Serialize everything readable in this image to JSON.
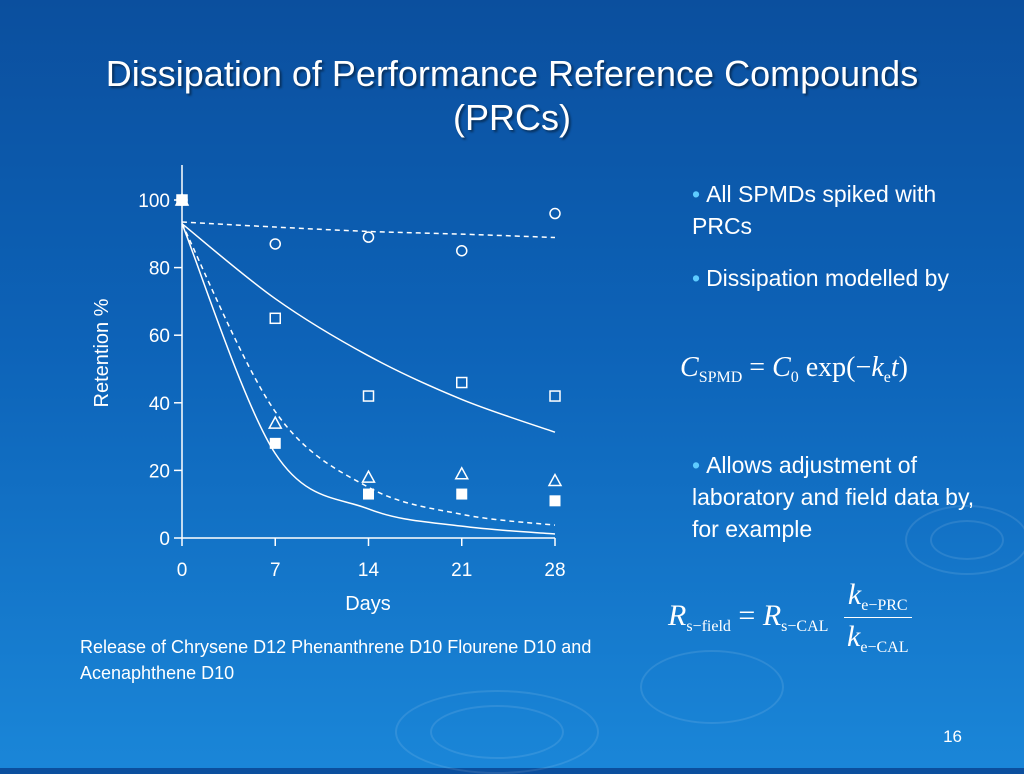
{
  "slide": {
    "title_line1": "Dissipation of Performance Reference Compounds",
    "title_line2": "(PRCs)",
    "page_number": "16",
    "caption": "Release of Chrysene D12 Phenanthrene D10 Flourene D10 and Acenaphthene D10",
    "bullets": [
      "All SPMDs spiked with PRCs",
      "Dissipation modelled by",
      "Allows adjustment of laboratory and field data by, for example"
    ]
  },
  "formula1": {
    "lhs": "C",
    "lhs_sub": "SPMD",
    "eq": "=",
    "c0": "C",
    "c0_sub": "0",
    "exp": "exp(",
    "minus": "−",
    "k": "k",
    "k_sub": "e",
    "t": "t",
    "close": ")"
  },
  "formula2": {
    "lhs": "R",
    "lhs_sub": "s−field",
    "eq": "=",
    "rhs": "R",
    "rhs_sub": "s−CAL",
    "num": "k",
    "num_sub": "e−PRC",
    "den": "k",
    "den_sub": "e−CAL"
  },
  "colors": {
    "background_top": "#0b4f9e",
    "background_bottom": "#1a86d8",
    "text": "#ffffff",
    "bullet": "#5ecbff"
  },
  "chart_data": {
    "type": "scatter",
    "xlabel": "Days",
    "ylabel": "Retention %",
    "xlim": [
      0,
      28
    ],
    "ylim": [
      0,
      100
    ],
    "xticks": [
      0,
      7,
      14,
      21,
      28
    ],
    "yticks": [
      0,
      20,
      40,
      60,
      80,
      100
    ],
    "series": [
      {
        "marker": "circle-open",
        "x": [
          0,
          7,
          14,
          21,
          28
        ],
        "y": [
          100,
          87,
          89,
          85,
          96
        ]
      },
      {
        "marker": "square-open",
        "x": [
          0,
          7,
          14,
          21,
          28
        ],
        "y": [
          100,
          65,
          42,
          46,
          42
        ]
      },
      {
        "marker": "triangle-open",
        "x": [
          0,
          7,
          14,
          21,
          28
        ],
        "y": [
          100,
          34,
          18,
          19,
          17
        ]
      },
      {
        "marker": "square-filled",
        "x": [
          0,
          7,
          14,
          21,
          28
        ],
        "y": [
          100,
          28,
          13,
          13,
          11
        ]
      }
    ],
    "fits": [
      {
        "style": "dashed",
        "x": [
          0,
          7,
          14,
          21,
          28
        ],
        "y": [
          93.5,
          92.0,
          90.7,
          89.9,
          88.9
        ]
      },
      {
        "style": "solid",
        "x": [
          0,
          7,
          14,
          21,
          28
        ],
        "y": [
          93,
          70.8,
          53.9,
          41.0,
          31.3
        ]
      },
      {
        "style": "dashed",
        "x": [
          0,
          7,
          14,
          21,
          28
        ],
        "y": [
          93,
          37.4,
          15.0,
          7.0,
          3.8
        ]
      },
      {
        "style": "solid",
        "x": [
          0,
          7,
          14,
          21,
          28
        ],
        "y": [
          93,
          25.0,
          8.6,
          3.5,
          1.2
        ]
      }
    ]
  }
}
